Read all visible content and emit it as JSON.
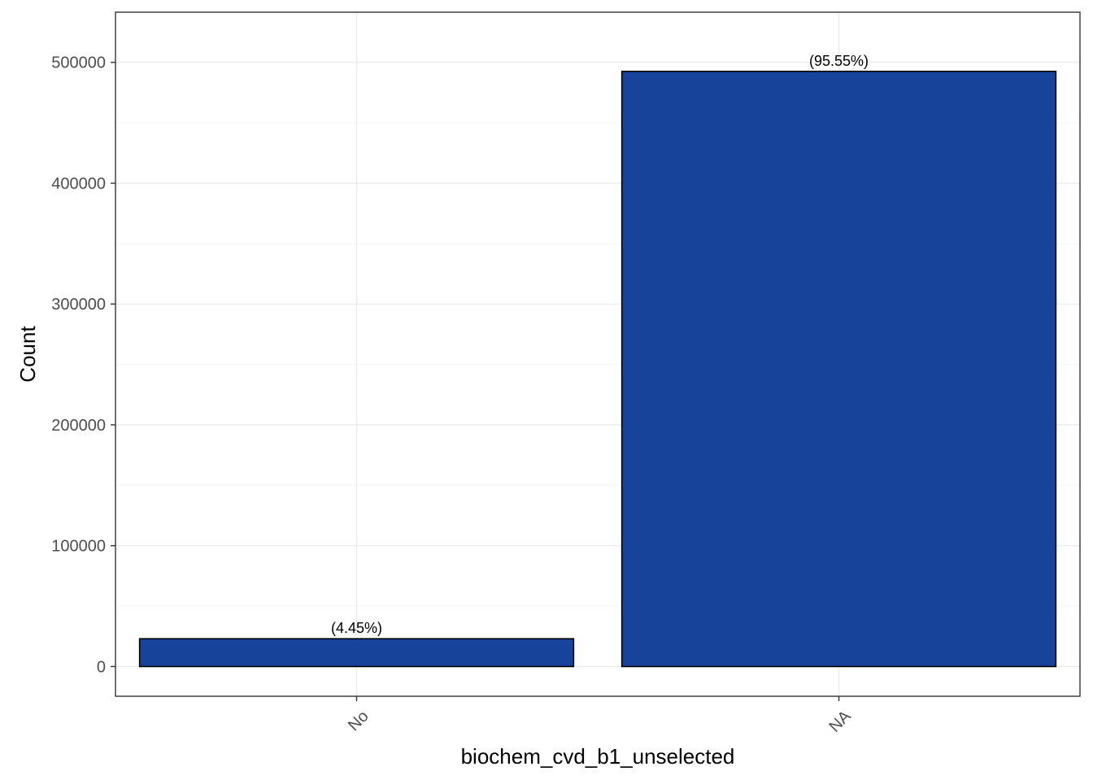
{
  "chart_data": {
    "type": "bar",
    "title": "",
    "xlabel": "biochem_cvd_b1_unselected",
    "ylabel": "Count",
    "categories": [
      "No",
      "NA"
    ],
    "values": [
      23000,
      492500
    ],
    "bar_labels": [
      "(4.45%)",
      "(95.55%)"
    ],
    "ylim": [
      -24600,
      541500
    ],
    "yticks": [
      0,
      100000,
      200000,
      300000,
      400000,
      500000
    ],
    "ytick_labels": [
      "0",
      "100000",
      "200000",
      "300000",
      "400000",
      "500000"
    ],
    "grid": true,
    "legend": "none",
    "colors": {
      "bar_fill": "#17449A",
      "bar_stroke": "#000000",
      "grid_major": "#EBEBEB",
      "grid_minor": "#F5F5F5",
      "panel_border": "#333333"
    }
  }
}
